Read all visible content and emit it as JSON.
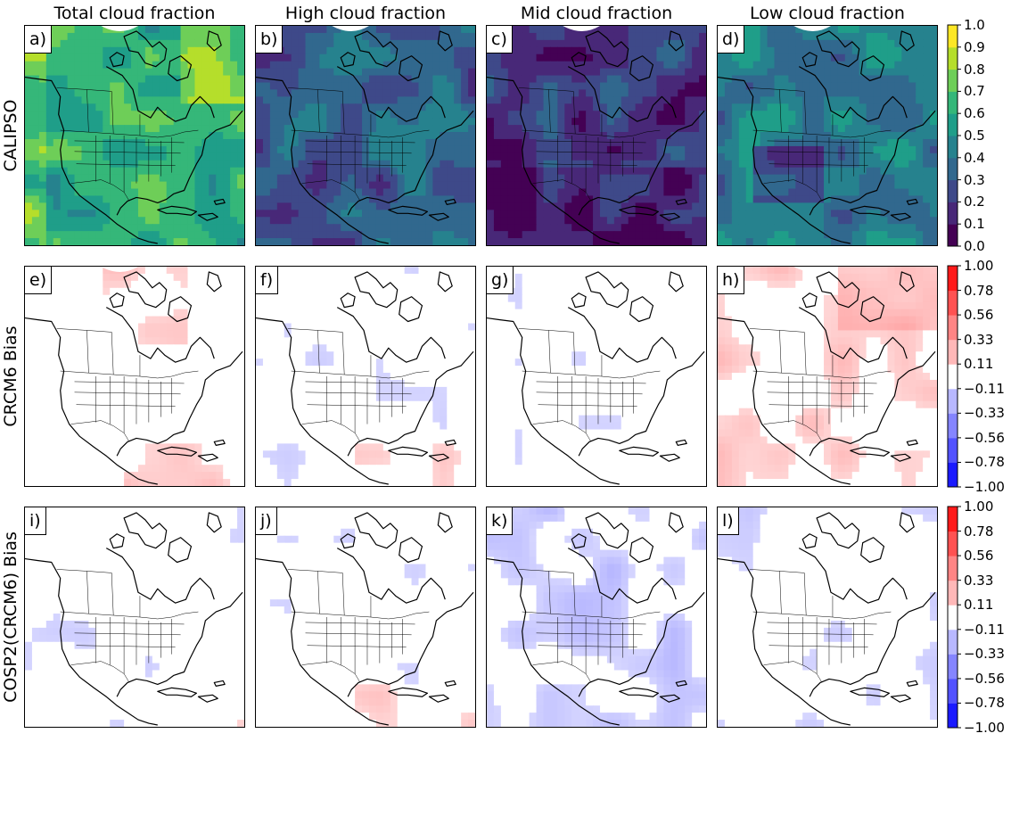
{
  "column_titles": [
    "Total cloud fraction",
    "High cloud fraction",
    "Mid cloud fraction",
    "Low cloud fraction"
  ],
  "row_labels": [
    "CALIPSO",
    "CRCM6 Bias",
    "COSP2(CRCM6) Bias"
  ],
  "panels": [
    {
      "label": "a)",
      "row": 0,
      "col": 0,
      "mean_value": 0.62
    },
    {
      "label": "b)",
      "row": 0,
      "col": 1,
      "mean_value": 0.32
    },
    {
      "label": "c)",
      "row": 0,
      "col": 2,
      "mean_value": 0.22
    },
    {
      "label": "d)",
      "row": 0,
      "col": 3,
      "mean_value": 0.42
    },
    {
      "label": "e)",
      "row": 1,
      "col": 0,
      "mean_value": 0.0
    },
    {
      "label": "f)",
      "row": 1,
      "col": 1,
      "mean_value": -0.03
    },
    {
      "label": "g)",
      "row": 1,
      "col": 2,
      "mean_value": -0.02
    },
    {
      "label": "h)",
      "row": 1,
      "col": 3,
      "mean_value": 0.12
    },
    {
      "label": "i)",
      "row": 2,
      "col": 0,
      "mean_value": -0.03
    },
    {
      "label": "j)",
      "row": 2,
      "col": 1,
      "mean_value": -0.02
    },
    {
      "label": "k)",
      "row": 2,
      "col": 2,
      "mean_value": -0.12
    },
    {
      "label": "l)",
      "row": 2,
      "col": 3,
      "mean_value": -0.06
    }
  ],
  "colorbars": [
    {
      "name": "cloud-fraction",
      "ticks": [
        "1.0",
        "0.9",
        "0.8",
        "0.7",
        "0.6",
        "0.5",
        "0.4",
        "0.3",
        "0.2",
        "0.1",
        "0.0"
      ],
      "colors": [
        "#440154",
        "#482878",
        "#3e4989",
        "#31688e",
        "#26828e",
        "#1f9e89",
        "#35b779",
        "#6ece58",
        "#b5de2b",
        "#fde725"
      ]
    },
    {
      "name": "crcm6-bias",
      "ticks": [
        "1.00",
        "0.78",
        "0.56",
        "0.33",
        "0.11",
        "−0.11",
        "−0.33",
        "−0.56",
        "−0.78",
        "−1.00"
      ],
      "colors": [
        "#1a1aff",
        "#5252ff",
        "#8585ff",
        "#b8b8ff",
        "#ffffff",
        "#ffb8b8",
        "#ff8585",
        "#ff5252",
        "#ff1a1a"
      ]
    },
    {
      "name": "cosp2-bias",
      "ticks": [
        "1.00",
        "0.78",
        "0.56",
        "0.33",
        "0.11",
        "−0.11",
        "−0.33",
        "−0.56",
        "−0.78",
        "−1.00"
      ],
      "colors": [
        "#1a1aff",
        "#5252ff",
        "#8585ff",
        "#b8b8ff",
        "#ffffff",
        "#ffb8b8",
        "#ff8585",
        "#ff5252",
        "#ff1a1a"
      ]
    }
  ],
  "style": {
    "map_line_color": "#000000",
    "diverging_low": "#1a1aff",
    "diverging_mid": "#ffffff",
    "diverging_high": "#ff1a1a",
    "sequential_colormap": "viridis"
  }
}
